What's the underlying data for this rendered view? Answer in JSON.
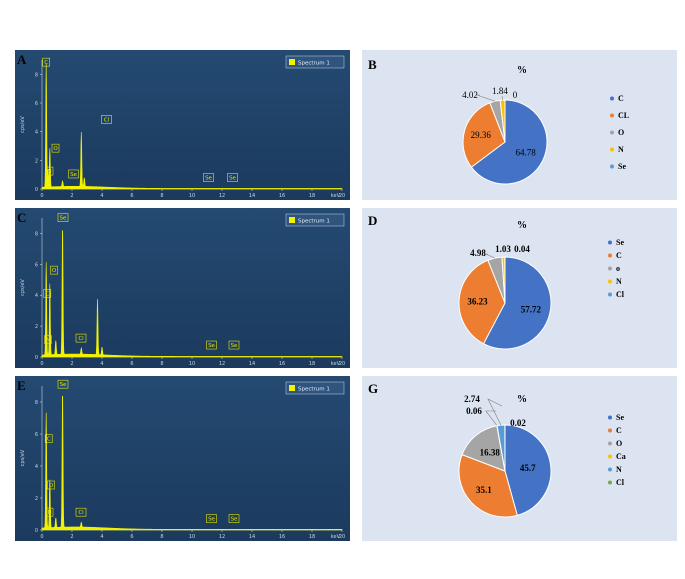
{
  "panels": {
    "a": {
      "letter": "A"
    },
    "b": {
      "letter": "B"
    },
    "c": {
      "letter": "C"
    },
    "d": {
      "letter": "D"
    },
    "e": {
      "letter": "E"
    },
    "g": {
      "letter": "G"
    }
  },
  "chart_data": [
    {
      "type": "line",
      "panel": "A",
      "legend": "Spectrum 1",
      "ylabel": "cps/eV",
      "xlabel": "keV",
      "xlim": [
        0,
        20
      ],
      "ylim": [
        0,
        9
      ],
      "xticks": [
        0,
        2,
        4,
        6,
        8,
        10,
        12,
        14,
        16,
        18,
        20
      ],
      "yticks": [
        0,
        2,
        4,
        6,
        8
      ],
      "peaks": [
        {
          "x": 0.28,
          "y": 8.6
        },
        {
          "x": 0.39,
          "y": 1.2
        },
        {
          "x": 0.52,
          "y": 2.7
        },
        {
          "x": 1.37,
          "y": 0.4
        },
        {
          "x": 2.62,
          "y": 3.8
        },
        {
          "x": 2.82,
          "y": 0.6
        }
      ],
      "element_labels": [
        {
          "text": "C",
          "x": 0.28,
          "y": 8.5
        },
        {
          "text": "O",
          "x": 0.9,
          "y": 2.5
        },
        {
          "text": "N",
          "x": 0.5,
          "y": 0.9
        },
        {
          "text": "Se",
          "x": 2.1,
          "y": 0.7
        },
        {
          "text": "Cl",
          "x": 4.3,
          "y": 4.5
        },
        {
          "text": "Se",
          "x": 11.1,
          "y": 0.45
        },
        {
          "text": "Se",
          "x": 12.7,
          "y": 0.45
        }
      ]
    },
    {
      "type": "pie",
      "panel": "B",
      "title": "%",
      "categories": [
        "C",
        "CL",
        "O",
        "N",
        "Se"
      ],
      "values": [
        64.78,
        29.36,
        4.02,
        1.84,
        0
      ],
      "colors": [
        "#4472c4",
        "#ed7d31",
        "#a5a5a5",
        "#ffc000",
        "#5b9bd5"
      ]
    },
    {
      "type": "line",
      "panel": "C",
      "legend": "Spectrum 1",
      "ylabel": "cps/eV",
      "xlabel": "keV",
      "xlim": [
        0,
        20
      ],
      "ylim": [
        0,
        9
      ],
      "xticks": [
        0,
        2,
        4,
        6,
        8,
        10,
        12,
        14,
        16,
        18,
        20
      ],
      "yticks": [
        0,
        2,
        4,
        6,
        8
      ],
      "peaks": [
        {
          "x": 0.28,
          "y": 6.0
        },
        {
          "x": 0.52,
          "y": 4.6
        },
        {
          "x": 0.92,
          "y": 0.9
        },
        {
          "x": 1.37,
          "y": 8.4
        },
        {
          "x": 2.62,
          "y": 0.4
        },
        {
          "x": 3.7,
          "y": 3.6
        },
        {
          "x": 4.0,
          "y": 0.5
        }
      ],
      "element_labels": [
        {
          "text": "Se",
          "x": 1.4,
          "y": 8.7
        },
        {
          "text": "O",
          "x": 0.8,
          "y": 5.3
        },
        {
          "text": "C",
          "x": 0.35,
          "y": 3.8
        },
        {
          "text": "N",
          "x": 0.4,
          "y": 0.8
        },
        {
          "text": "Cl",
          "x": 2.6,
          "y": 0.9
        },
        {
          "text": "Se",
          "x": 11.3,
          "y": 0.45
        },
        {
          "text": "Se",
          "x": 12.8,
          "y": 0.45
        }
      ]
    },
    {
      "type": "pie",
      "panel": "D",
      "title": "%",
      "categories": [
        "Se",
        "C",
        "o",
        "N",
        "Cl"
      ],
      "values": [
        57.72,
        36.23,
        4.98,
        1.03,
        0.04
      ],
      "colors": [
        "#4472c4",
        "#ed7d31",
        "#a5a5a5",
        "#ffc000",
        "#5b9bd5"
      ]
    },
    {
      "type": "line",
      "panel": "E",
      "legend": "Spectrum 1",
      "ylabel": "cps/eV",
      "xlabel": "keV",
      "xlim": [
        0,
        20
      ],
      "ylim": [
        0,
        9
      ],
      "xticks": [
        0,
        2,
        4,
        6,
        8,
        10,
        12,
        14,
        16,
        18,
        20
      ],
      "yticks": [
        0,
        2,
        4,
        6,
        8
      ],
      "peaks": [
        {
          "x": 0.28,
          "y": 7.2
        },
        {
          "x": 0.52,
          "y": 3.0
        },
        {
          "x": 0.92,
          "y": 0.6
        },
        {
          "x": 1.37,
          "y": 8.6
        },
        {
          "x": 2.62,
          "y": 0.3
        }
      ],
      "element_labels": [
        {
          "text": "Se",
          "x": 1.4,
          "y": 8.8
        },
        {
          "text": "C",
          "x": 0.45,
          "y": 5.4
        },
        {
          "text": "O",
          "x": 0.6,
          "y": 2.5
        },
        {
          "text": "N",
          "x": 0.5,
          "y": 0.8
        },
        {
          "text": "Cl",
          "x": 2.6,
          "y": 0.8
        },
        {
          "text": "Se",
          "x": 11.3,
          "y": 0.4
        },
        {
          "text": "Se",
          "x": 12.8,
          "y": 0.4
        }
      ]
    },
    {
      "type": "pie",
      "panel": "G",
      "title": "%",
      "categories": [
        "Se",
        "C",
        "O",
        "Ca",
        "N",
        "Cl"
      ],
      "values": [
        45.7,
        35.1,
        16.38,
        0.06,
        2.74,
        0.02
      ],
      "colors": [
        "#4472c4",
        "#ed7d31",
        "#a5a5a5",
        "#ffc000",
        "#5b9bd5",
        "#70ad47"
      ]
    }
  ]
}
